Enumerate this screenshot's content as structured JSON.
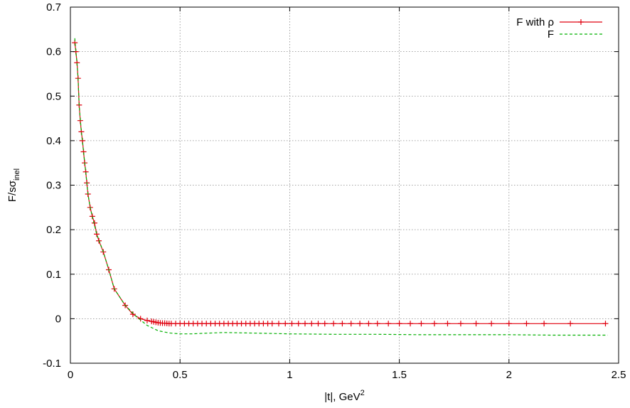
{
  "chart_data": {
    "type": "line",
    "title": "",
    "xlabel": "|t|, GeV",
    "xlabel_sup": "2",
    "ylabel": "F/sσ",
    "ylabel_sub": "inel",
    "xlim": [
      0,
      2.5
    ],
    "ylim": [
      -0.1,
      0.7
    ],
    "xticks": [
      0,
      0.5,
      1,
      1.5,
      2,
      2.5
    ],
    "xtick_labels": [
      "0",
      "0.5",
      "1",
      "1.5",
      "2",
      "2.5"
    ],
    "yticks": [
      -0.1,
      0,
      0.1,
      0.2,
      0.3,
      0.4,
      0.5,
      0.6,
      0.7
    ],
    "ytick_labels": [
      "-0.1",
      "0",
      "0.1",
      "0.2",
      "0.3",
      "0.4",
      "0.5",
      "0.6",
      "0.7"
    ],
    "grid": true,
    "legend_position": "top-right",
    "series": [
      {
        "name": "F with ρ",
        "color": "#e0000f",
        "line_style": "solid",
        "marker": "plus",
        "x": [
          0.02,
          0.025,
          0.03,
          0.035,
          0.04,
          0.045,
          0.05,
          0.055,
          0.06,
          0.065,
          0.07,
          0.075,
          0.08,
          0.09,
          0.1,
          0.11,
          0.12,
          0.13,
          0.15,
          0.175,
          0.2,
          0.25,
          0.285,
          0.32,
          0.35,
          0.37,
          0.38,
          0.39,
          0.4,
          0.41,
          0.42,
          0.43,
          0.44,
          0.45,
          0.46,
          0.48,
          0.5,
          0.52,
          0.54,
          0.56,
          0.58,
          0.6,
          0.62,
          0.64,
          0.66,
          0.68,
          0.7,
          0.72,
          0.74,
          0.76,
          0.78,
          0.8,
          0.82,
          0.84,
          0.86,
          0.88,
          0.9,
          0.92,
          0.95,
          0.98,
          1.01,
          1.04,
          1.07,
          1.1,
          1.13,
          1.16,
          1.2,
          1.24,
          1.28,
          1.32,
          1.36,
          1.4,
          1.45,
          1.5,
          1.55,
          1.6,
          1.66,
          1.72,
          1.78,
          1.85,
          1.92,
          2.0,
          2.08,
          2.16,
          2.28,
          2.44
        ],
        "y": [
          0.62,
          0.6,
          0.575,
          0.54,
          0.48,
          0.445,
          0.42,
          0.4,
          0.375,
          0.35,
          0.33,
          0.305,
          0.28,
          0.25,
          0.23,
          0.215,
          0.19,
          0.175,
          0.15,
          0.11,
          0.067,
          0.03,
          0.01,
          0.0,
          -0.004,
          -0.006,
          -0.007,
          -0.008,
          -0.009,
          -0.0095,
          -0.01,
          -0.01,
          -0.0105,
          -0.011,
          -0.011,
          -0.011,
          -0.011,
          -0.011,
          -0.011,
          -0.011,
          -0.011,
          -0.011,
          -0.011,
          -0.011,
          -0.011,
          -0.011,
          -0.011,
          -0.011,
          -0.011,
          -0.011,
          -0.011,
          -0.011,
          -0.011,
          -0.011,
          -0.011,
          -0.011,
          -0.011,
          -0.011,
          -0.011,
          -0.011,
          -0.011,
          -0.011,
          -0.011,
          -0.011,
          -0.011,
          -0.011,
          -0.011,
          -0.011,
          -0.011,
          -0.011,
          -0.011,
          -0.011,
          -0.011,
          -0.011,
          -0.011,
          -0.011,
          -0.011,
          -0.011,
          -0.011,
          -0.011,
          -0.011,
          -0.011,
          -0.011,
          -0.011,
          -0.011,
          -0.011
        ]
      },
      {
        "name": "F",
        "color": "#00b000",
        "line_style": "dashed",
        "marker": "none",
        "x": [
          0.02,
          0.025,
          0.03,
          0.035,
          0.04,
          0.05,
          0.06,
          0.07,
          0.08,
          0.09,
          0.1,
          0.12,
          0.15,
          0.175,
          0.2,
          0.25,
          0.3,
          0.35,
          0.4,
          0.45,
          0.5,
          0.55,
          0.6,
          0.7,
          0.8,
          0.9,
          1.0,
          1.2,
          1.4,
          1.6,
          1.8,
          2.0,
          2.2,
          2.45
        ],
        "y": [
          0.63,
          0.6,
          0.575,
          0.54,
          0.48,
          0.42,
          0.375,
          0.33,
          0.28,
          0.25,
          0.23,
          0.19,
          0.15,
          0.11,
          0.067,
          0.03,
          0.005,
          -0.015,
          -0.027,
          -0.032,
          -0.034,
          -0.034,
          -0.033,
          -0.031,
          -0.032,
          -0.033,
          -0.034,
          -0.035,
          -0.035,
          -0.036,
          -0.036,
          -0.036,
          -0.037,
          -0.037
        ]
      }
    ]
  }
}
